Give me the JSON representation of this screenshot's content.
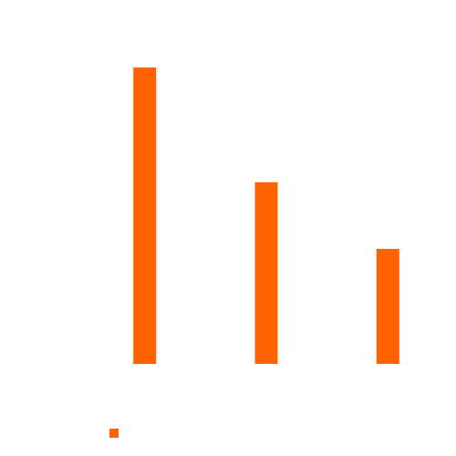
{
  "chart_data": {
    "type": "bar",
    "categories": [
      "",
      "",
      ""
    ],
    "values": [
      100,
      61.3,
      38.8
    ],
    "ylim": [
      0,
      100
    ],
    "grid": false,
    "legend": "bottom-left",
    "series": [
      {
        "color": "#ff6200",
        "values": [
          100,
          61.3,
          38.8
        ]
      }
    ]
  }
}
